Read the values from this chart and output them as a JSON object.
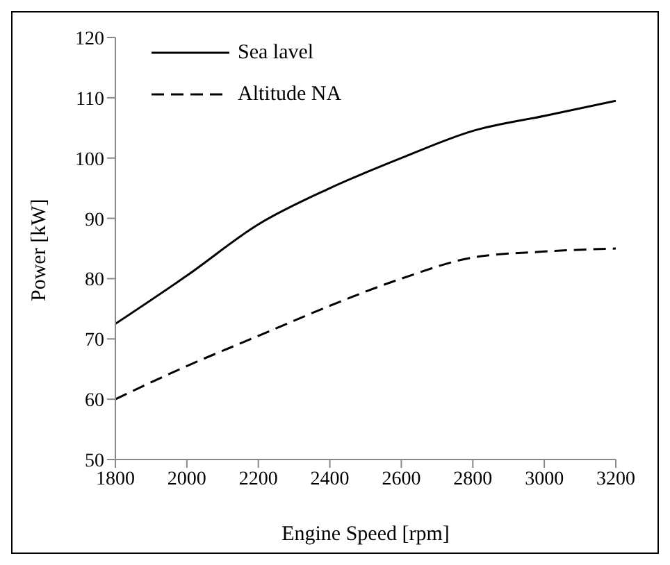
{
  "chart_data": {
    "type": "line",
    "xlabel": "Engine Speed [rpm]",
    "ylabel": "Power [kW]",
    "x": [
      1800,
      2000,
      2200,
      2400,
      2600,
      2800,
      3000,
      3200
    ],
    "series": [
      {
        "name": "Sea lavel",
        "color": "#000000",
        "line_style": "solid",
        "values": [
          72.5,
          80.5,
          89,
          95,
          100,
          104.5,
          107,
          109.5
        ]
      },
      {
        "name": "Altitude NA",
        "color": "#000000",
        "line_style": "dashed",
        "values": [
          60,
          65.5,
          70.5,
          75.5,
          80,
          83.5,
          84.5,
          85
        ]
      }
    ],
    "xlim": [
      1800,
      3200
    ],
    "xticks": [
      1800,
      2000,
      2200,
      2400,
      2600,
      2800,
      3000,
      3200
    ],
    "ylim": [
      50,
      120
    ],
    "yticks": [
      50,
      60,
      70,
      80,
      90,
      100,
      110,
      120
    ],
    "grid": false,
    "legend": "top left",
    "marker": "none"
  }
}
